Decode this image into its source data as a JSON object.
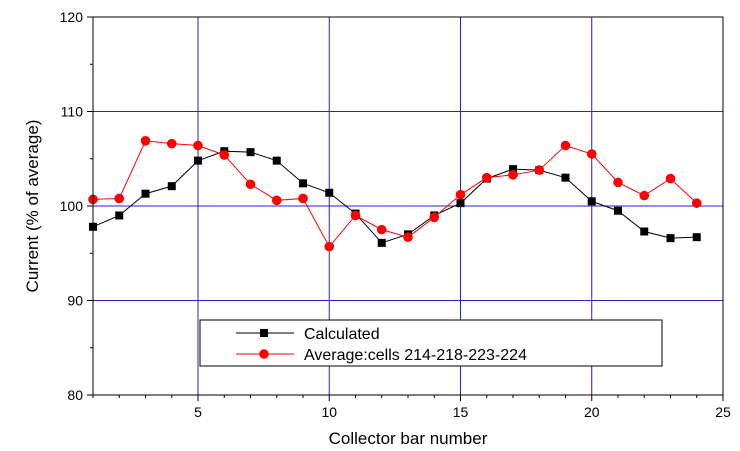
{
  "chart_data": {
    "type": "line",
    "xlabel": "Collector bar number",
    "ylabel": "Current (% of average)",
    "xlim": [
      1,
      25
    ],
    "ylim": [
      80,
      120
    ],
    "xticks": [
      5,
      10,
      15,
      20,
      25
    ],
    "yticks": [
      80,
      90,
      100,
      110,
      120
    ],
    "grid": "major, both axes",
    "legend_position": "lower-center",
    "x": [
      1,
      2,
      3,
      4,
      5,
      6,
      7,
      8,
      9,
      10,
      11,
      12,
      13,
      14,
      15,
      16,
      17,
      18,
      19,
      20,
      21,
      22,
      23,
      24
    ],
    "series": [
      {
        "name": "Calculated",
        "color": "#000000",
        "marker": "square",
        "values": [
          97.8,
          99.0,
          101.3,
          102.1,
          104.8,
          105.8,
          105.7,
          104.8,
          102.4,
          101.4,
          99.2,
          96.1,
          97.0,
          99.0,
          100.3,
          102.9,
          103.9,
          103.8,
          103.0,
          100.5,
          99.5,
          97.3,
          96.6,
          96.7
        ]
      },
      {
        "name": "Average:cells 214-218-223-224",
        "color": "#ff0000",
        "marker": "circle",
        "values": [
          100.7,
          100.8,
          106.9,
          106.6,
          106.4,
          105.4,
          102.3,
          100.6,
          100.8,
          95.7,
          99.0,
          97.5,
          96.7,
          98.8,
          101.2,
          103.0,
          103.3,
          103.8,
          106.4,
          105.5,
          102.5,
          101.1,
          102.9,
          100.3
        ]
      }
    ]
  },
  "colors": {
    "grid": "#2222cc",
    "axis": "#000000"
  }
}
